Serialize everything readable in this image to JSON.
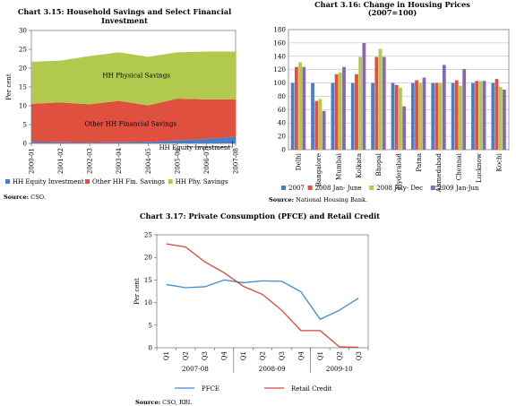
{
  "charts_meta": {
    "c1": {
      "title": "Chart 3.15: Household Savings and Select Financial Investment",
      "source_label": "Source:",
      "source_text": " CSO."
    },
    "c2": {
      "title_line1": "Chart 3.16: Change in Housing Prices",
      "title_line2": "(2007=100)",
      "source_label": "Source:",
      "source_text": " National Housing Bank."
    },
    "c3": {
      "title": "Chart 3.17: Private Consumption (PFCE) and Retail Credit",
      "source_label": "Source:",
      "source_text": " CSO, RBI."
    }
  },
  "chart_data": [
    {
      "type": "area",
      "title": "Chart 3.15: Household Savings and Select Financial Investment",
      "ylabel": "Per cent",
      "ylim": [
        0,
        30
      ],
      "yticks": [
        0,
        5,
        10,
        15,
        20,
        25,
        30
      ],
      "x": [
        "2000-01",
        "2001-02",
        "2002-03",
        "2003-04",
        "2004-05",
        "2005-06",
        "2006-07",
        "2007-08"
      ],
      "series": [
        {
          "name": "HH Equity Investment",
          "color": "#4a7fc6",
          "values": [
            0.4,
            0.3,
            0.2,
            0.3,
            0.4,
            0.8,
            1.2,
            1.8
          ]
        },
        {
          "name": "Other HH Fin. Savings",
          "color": "#e0503f",
          "values": [
            10.1,
            10.6,
            10.2,
            11.0,
            9.7,
            11.1,
            10.5,
            9.9
          ]
        },
        {
          "name": "HH Phy. Savings",
          "color": "#b1ca4e",
          "values": [
            11.2,
            11.1,
            12.8,
            12.9,
            12.9,
            12.3,
            12.7,
            12.7
          ]
        }
      ],
      "annotations": [
        "HH Physical Savings",
        "Other  HH Financial Savings",
        "HH Equity  Investment"
      ],
      "legend_position": "bottom"
    },
    {
      "type": "bar",
      "title": "Chart 3.16: Change in Housing Prices (2007=100)",
      "ylim": [
        0,
        180
      ],
      "yticks": [
        0,
        20,
        40,
        60,
        80,
        100,
        120,
        140,
        160,
        180
      ],
      "categories": [
        "Delhi",
        "Bangalore",
        "Mumbai",
        "Kolkata",
        "Bhopal",
        "Hyderabad",
        "Patna",
        "Ahmedabad",
        "Chennai",
        "Lucknow",
        "Kochi"
      ],
      "series": [
        {
          "name": "2007",
          "color": "#4a7fc6",
          "values": [
            100,
            100,
            100,
            100,
            100,
            100,
            100,
            100,
            100,
            100,
            100
          ]
        },
        {
          "name": "2008 Jan- June",
          "color": "#e0503f",
          "values": [
            124,
            73,
            113,
            113,
            139,
            97,
            104,
            100,
            104,
            103,
            106
          ]
        },
        {
          "name": "2008 July- Dec",
          "color": "#b1ca4e",
          "values": [
            131,
            76,
            116,
            139,
            151,
            93,
            100,
            100,
            96,
            103,
            94
          ]
        },
        {
          "name": "2009 Jan-Jun",
          "color": "#8a66b3",
          "values": [
            124,
            58,
            124,
            160,
            139,
            65,
            108,
            127,
            121,
            103,
            90
          ]
        }
      ],
      "legend_position": "bottom"
    },
    {
      "type": "line",
      "title": "Chart 3.17: Private Consumption (PFCE) and Retail Credit",
      "ylabel": "Per cent",
      "ylim": [
        0,
        25
      ],
      "yticks": [
        0,
        5,
        10,
        15,
        20,
        25
      ],
      "x": [
        "Q1",
        "Q2",
        "Q3",
        "Q4",
        "Q1",
        "Q2",
        "Q3",
        "Q4",
        "Q1",
        "Q2",
        "Q3"
      ],
      "groups": [
        {
          "label": "2007-08",
          "span": 4
        },
        {
          "label": "2008-09",
          "span": 4
        },
        {
          "label": "2009-10",
          "span": 3
        }
      ],
      "series": [
        {
          "name": "PFCE",
          "color": "#3c8ed0",
          "values": [
            14.0,
            13.3,
            13.5,
            15.0,
            14.4,
            14.8,
            14.7,
            12.4,
            6.3,
            8.3,
            11.0
          ]
        },
        {
          "name": "Retail Credit",
          "color": "#d8473a",
          "values": [
            23.0,
            22.3,
            19.0,
            16.6,
            13.6,
            11.8,
            8.3,
            3.8,
            3.8,
            0.2,
            0.1
          ]
        }
      ],
      "legend_position": "bottom"
    }
  ]
}
